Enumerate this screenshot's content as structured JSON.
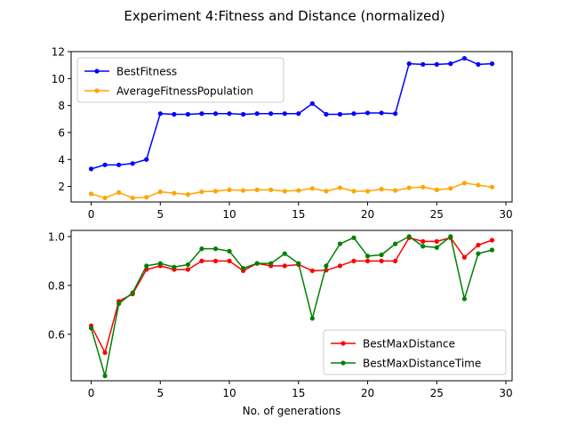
{
  "figure": {
    "title": "Experiment 4:Fitness and Distance (normalized)"
  },
  "chart_data": [
    {
      "type": "line",
      "xlabel": "",
      "ylabel": "",
      "xlim": [
        -1.45,
        30.45
      ],
      "ylim": [
        0.85,
        12.0
      ],
      "xticks": [
        0,
        5,
        10,
        15,
        20,
        25,
        30
      ],
      "yticks": [
        2,
        4,
        6,
        8,
        10,
        12
      ],
      "legend_position": "upper-left",
      "grid": false,
      "x": [
        0,
        1,
        2,
        3,
        4,
        5,
        6,
        7,
        8,
        9,
        10,
        11,
        12,
        13,
        14,
        15,
        16,
        17,
        18,
        19,
        20,
        21,
        22,
        23,
        24,
        25,
        26,
        27,
        28,
        29
      ],
      "series": [
        {
          "name": "BestFitness",
          "color": "#0000ff",
          "values": [
            3.3,
            3.6,
            3.6,
            3.7,
            4.0,
            7.4,
            7.35,
            7.35,
            7.4,
            7.4,
            7.4,
            7.35,
            7.4,
            7.4,
            7.4,
            7.4,
            8.15,
            7.35,
            7.35,
            7.4,
            7.45,
            7.45,
            7.4,
            11.1,
            11.05,
            11.05,
            11.1,
            11.5,
            11.05,
            11.1
          ]
        },
        {
          "name": "AverageFitnessPopulation",
          "color": "#ffa500",
          "values": [
            1.45,
            1.15,
            1.55,
            1.15,
            1.2,
            1.6,
            1.5,
            1.4,
            1.6,
            1.65,
            1.75,
            1.7,
            1.75,
            1.75,
            1.65,
            1.7,
            1.85,
            1.65,
            1.9,
            1.65,
            1.65,
            1.8,
            1.7,
            1.9,
            1.95,
            1.75,
            1.85,
            2.25,
            2.1,
            1.95
          ]
        }
      ]
    },
    {
      "type": "line",
      "xlabel": "No. of generations",
      "ylabel": "",
      "xlim": [
        -1.45,
        30.45
      ],
      "ylim": [
        0.41,
        1.025
      ],
      "xticks": [
        0,
        5,
        10,
        15,
        20,
        25,
        30
      ],
      "yticks": [
        0.6,
        0.8,
        1.0
      ],
      "ytick_labels": [
        "0.6",
        "0.8",
        "1.0"
      ],
      "legend_position": "lower-right",
      "grid": false,
      "x": [
        0,
        1,
        2,
        3,
        4,
        5,
        6,
        7,
        8,
        9,
        10,
        11,
        12,
        13,
        14,
        15,
        16,
        17,
        18,
        19,
        20,
        21,
        22,
        23,
        24,
        25,
        26,
        27,
        28,
        29
      ],
      "series": [
        {
          "name": "BestMaxDistance",
          "color": "#ff0000",
          "values": [
            0.635,
            0.525,
            0.735,
            0.765,
            0.865,
            0.88,
            0.865,
            0.865,
            0.9,
            0.9,
            0.9,
            0.86,
            0.89,
            0.88,
            0.88,
            0.885,
            0.86,
            0.862,
            0.88,
            0.9,
            0.9,
            0.9,
            0.9,
            0.995,
            0.98,
            0.98,
            0.995,
            0.915,
            0.965,
            0.985
          ]
        },
        {
          "name": "BestMaxDistanceTime",
          "color": "#008000",
          "values": [
            0.625,
            0.43,
            0.725,
            0.77,
            0.88,
            0.89,
            0.875,
            0.885,
            0.95,
            0.95,
            0.94,
            0.87,
            0.89,
            0.89,
            0.93,
            0.89,
            0.665,
            0.88,
            0.97,
            0.995,
            0.92,
            0.925,
            0.97,
            1.0,
            0.96,
            0.955,
            1.0,
            0.745,
            0.93,
            0.945
          ]
        }
      ]
    }
  ]
}
